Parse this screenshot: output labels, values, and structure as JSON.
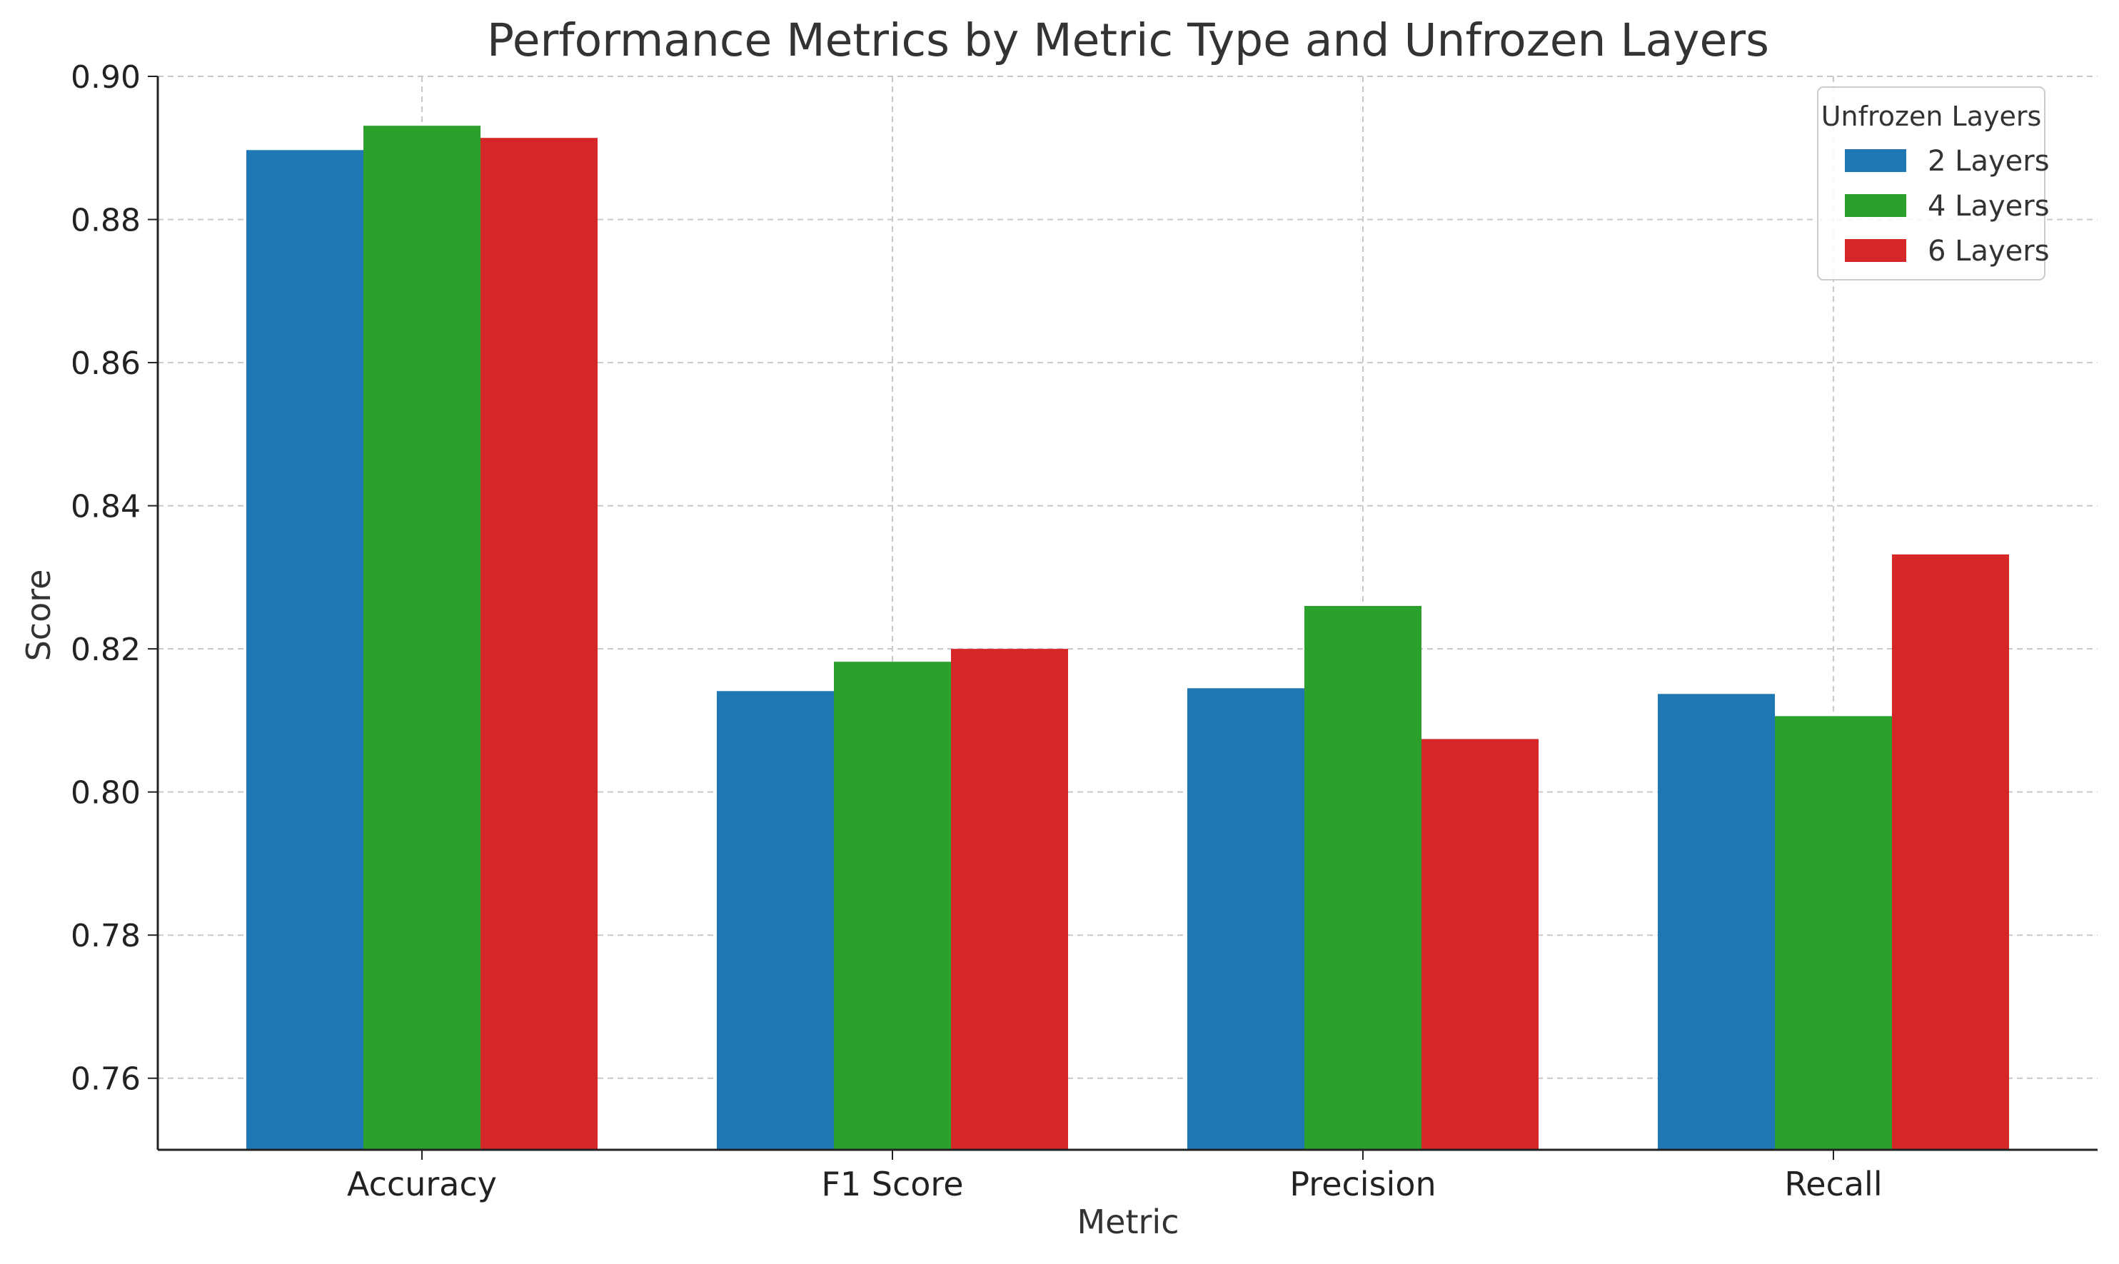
{
  "chart_data": {
    "type": "bar",
    "title": "Performance Metrics by Metric Type and Unfrozen Layers",
    "xlabel": "Metric",
    "ylabel": "Score",
    "categories": [
      "Accuracy",
      "F1 Score",
      "Precision",
      "Recall"
    ],
    "ylim": [
      0.75,
      0.9
    ],
    "yticks": [
      "0.76",
      "0.78",
      "0.80",
      "0.82",
      "0.84",
      "0.86",
      "0.88",
      "0.90"
    ],
    "grid": true,
    "legend": {
      "title": "Unfrozen Layers",
      "position": "top-right"
    },
    "series": [
      {
        "name": "2 Layers",
        "color": "#1f77b4",
        "values": [
          0.8897,
          0.8141,
          0.8145,
          0.8137
        ]
      },
      {
        "name": "4 Layers",
        "color": "#2ca02c",
        "values": [
          0.8931,
          0.8182,
          0.826,
          0.8106
        ]
      },
      {
        "name": "6 Layers",
        "color": "#d62728",
        "values": [
          0.8914,
          0.82,
          0.8074,
          0.8332
        ]
      }
    ]
  }
}
